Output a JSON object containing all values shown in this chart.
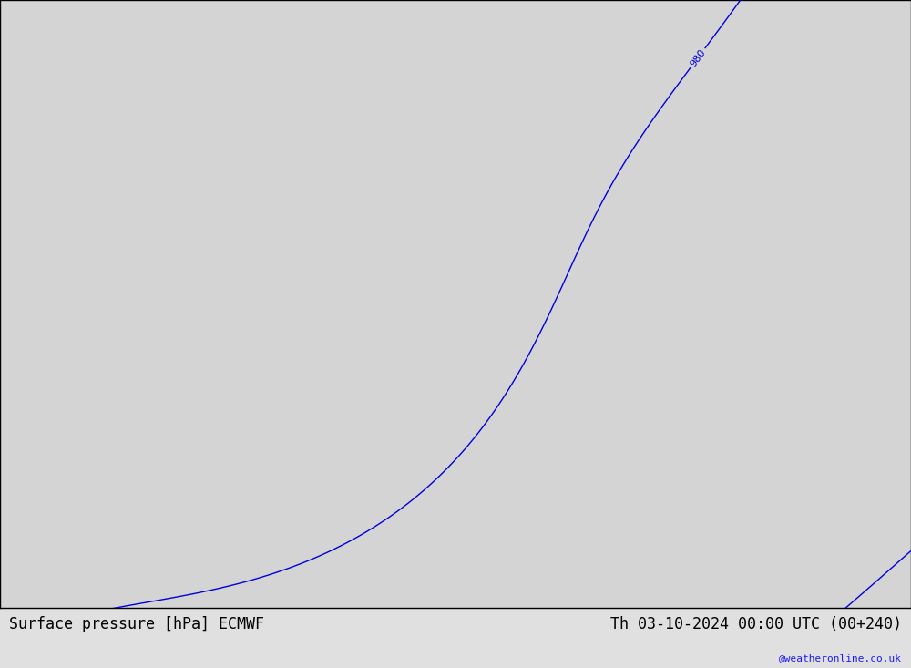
{
  "title_left": "Surface pressure [hPa] ECMWF",
  "title_right": "Th 03-10-2024 00:00 UTC (00+240)",
  "watermark": "@weatheronline.co.uk",
  "background_color": "#d4d4d4",
  "land_color": "#b5dba0",
  "sea_color": "#d4d4d4",
  "border_color": "#000000",
  "blue_contour_color": "#0000dd",
  "black_contour_color": "#000000",
  "red_contour_color": "#dd0000",
  "blue_levels": [
    980,
    984,
    988,
    992,
    996,
    1000,
    1004,
    1008,
    1012
  ],
  "black_levels": [
    1013
  ],
  "red_levels": [
    1016,
    1020
  ],
  "label_fontsize": 8,
  "title_fontsize": 12,
  "watermark_fontsize": 8,
  "lon_min": -14,
  "lon_max": 13,
  "lat_min": 44,
  "lat_max": 62,
  "contour_linewidth": 1.0,
  "black_linewidth": 1.5,
  "low_lon": -30,
  "low_lat": 68,
  "high_lon": 30,
  "high_lat": 38
}
